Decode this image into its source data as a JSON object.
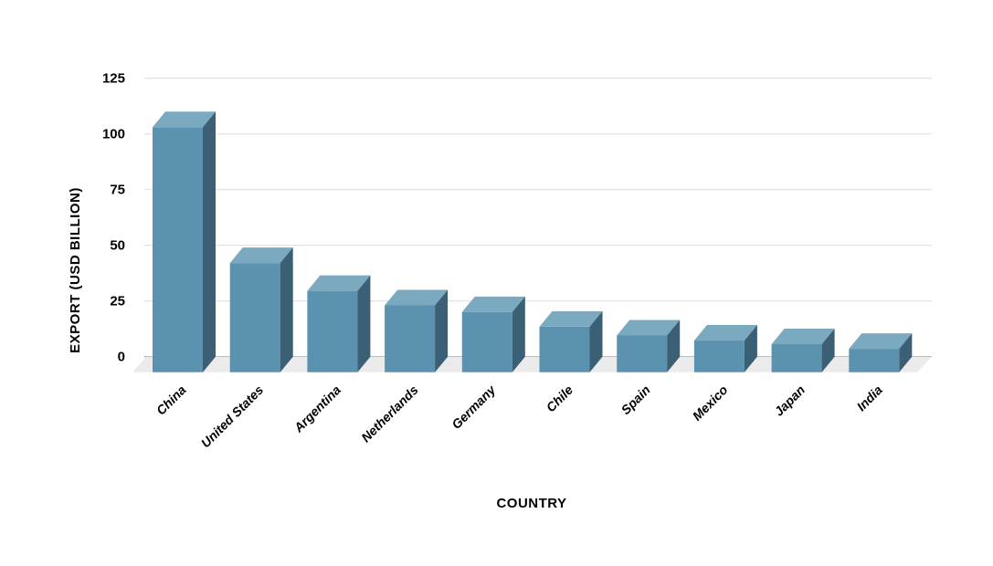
{
  "chart_data": {
    "type": "bar",
    "style": "3d-column",
    "categories": [
      "China",
      "United States",
      "Argentina",
      "Netherlands",
      "Germany",
      "Chile",
      "Spain",
      "Mexico",
      "Japan",
      "India"
    ],
    "values": [
      110,
      49,
      36.5,
      30,
      27,
      20.4,
      16.5,
      14.2,
      12.6,
      10.5
    ],
    "title": "",
    "xlabel": "COUNTRY",
    "ylabel": "EXPORT (USD BILLION)",
    "ylim": [
      0,
      125
    ],
    "yticks": [
      "0",
      "25",
      "50",
      "75",
      "100",
      "125"
    ],
    "grid": true,
    "legend": "none",
    "colors": {
      "front": "#5b92b0",
      "top": "#7aa9c0",
      "side": "#3b6075",
      "floor": "#ebebeb",
      "grid": "#dcdcdc"
    }
  }
}
